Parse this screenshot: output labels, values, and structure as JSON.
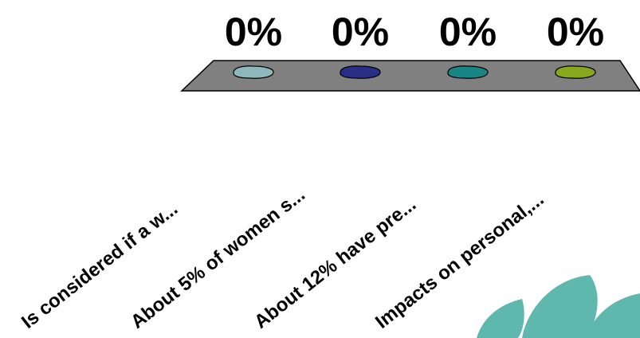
{
  "chart_data": {
    "type": "bar",
    "categories": [
      "Is considered if a w...",
      "About 5% of women s...",
      "About 12% have pre...",
      "Impacts on personal,..."
    ],
    "values": [
      0,
      0,
      0,
      0
    ],
    "value_labels": [
      "0%",
      "0%",
      "0%",
      "0%"
    ],
    "colors": [
      "#8fb8bd",
      "#2a2f86",
      "#1a8585",
      "#87a81c"
    ],
    "floor_color": "#808080",
    "decoration_color": "#5fb8ad"
  }
}
